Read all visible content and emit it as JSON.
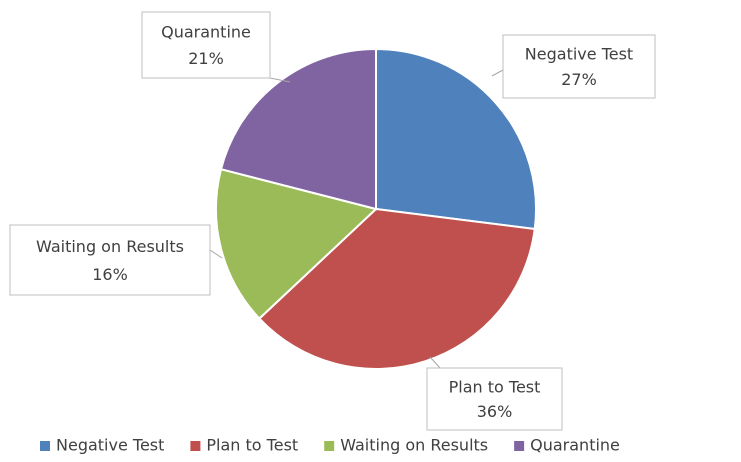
{
  "chart_data": {
    "type": "pie",
    "categories": [
      "Negative Test",
      "Plan to Test",
      "Waiting on Results",
      "Quarantine"
    ],
    "values": [
      27,
      36,
      16,
      21
    ],
    "value_labels": [
      "27%",
      "36%",
      "16%",
      "21%"
    ],
    "colors": [
      "#4f81bd",
      "#c0504d",
      "#9bbb59",
      "#8064a2"
    ],
    "legend": "bottom"
  }
}
